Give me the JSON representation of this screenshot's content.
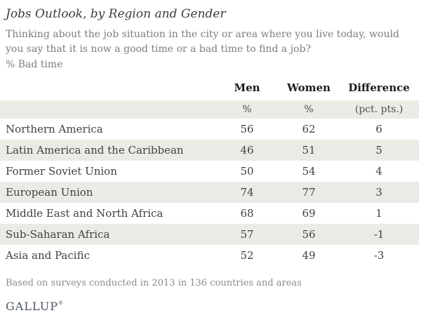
{
  "title": "Jobs Outlook, by Region and Gender",
  "subtitle": "Thinking about the job situation in the city or area where you live today, would you say that it is now a good time or a bad time to find a job?",
  "measure_label": "% Bad time",
  "table": {
    "columns": [
      "",
      "Men",
      "Women",
      "Difference"
    ],
    "units_row": [
      "",
      "%",
      "%",
      "(pct. pts.)"
    ],
    "rows": [
      {
        "region": "Northern America",
        "men": 56,
        "women": 62,
        "difference": 6
      },
      {
        "region": "Latin America and the Caribbean",
        "men": 46,
        "women": 51,
        "difference": 5
      },
      {
        "region": "Former Soviet Union",
        "men": 50,
        "women": 54,
        "difference": 4
      },
      {
        "region": "European Union",
        "men": 74,
        "women": 77,
        "difference": 3
      },
      {
        "region": "Middle East and North Africa",
        "men": 68,
        "women": 69,
        "difference": 1
      },
      {
        "region": "Sub-Saharan Africa",
        "men": 57,
        "women": 56,
        "difference": -1
      },
      {
        "region": "Asia and Pacific",
        "men": 52,
        "women": 49,
        "difference": -3
      }
    ]
  },
  "footnote": "Based on surveys conducted in 2013 in 136 countries and areas",
  "logo": {
    "text": "GALLUP",
    "trademark": "®"
  },
  "colors": {
    "row_shade": "#ebebe6",
    "title_text": "#3c3c3c",
    "subtitle_text": "#7d7d7d",
    "header_text": "#1d1d1d",
    "cell_text": "#404040",
    "footnote_text": "#8c8c8c",
    "logo_text": "#4d5661"
  },
  "chart_data": {
    "type": "table",
    "title": "Jobs Outlook, by Region and Gender",
    "subtitle": "Thinking about the job situation in the city or area where you live today, would you say that it is now a good time or a bad time to find a job?",
    "measure": "% Bad time",
    "categories": [
      "Northern America",
      "Latin America and the Caribbean",
      "Former Soviet Union",
      "European Union",
      "Middle East and North Africa",
      "Sub-Saharan Africa",
      "Asia and Pacific"
    ],
    "series": [
      {
        "name": "Men (%)",
        "values": [
          56,
          46,
          50,
          74,
          68,
          57,
          52
        ]
      },
      {
        "name": "Women (%)",
        "values": [
          62,
          51,
          54,
          77,
          69,
          56,
          49
        ]
      },
      {
        "name": "Difference (pct. pts.)",
        "values": [
          6,
          5,
          4,
          3,
          1,
          -1,
          -3
        ]
      }
    ],
    "footnote": "Based on surveys conducted in 2013 in 136 countries and areas",
    "source_logo": "GALLUP"
  }
}
